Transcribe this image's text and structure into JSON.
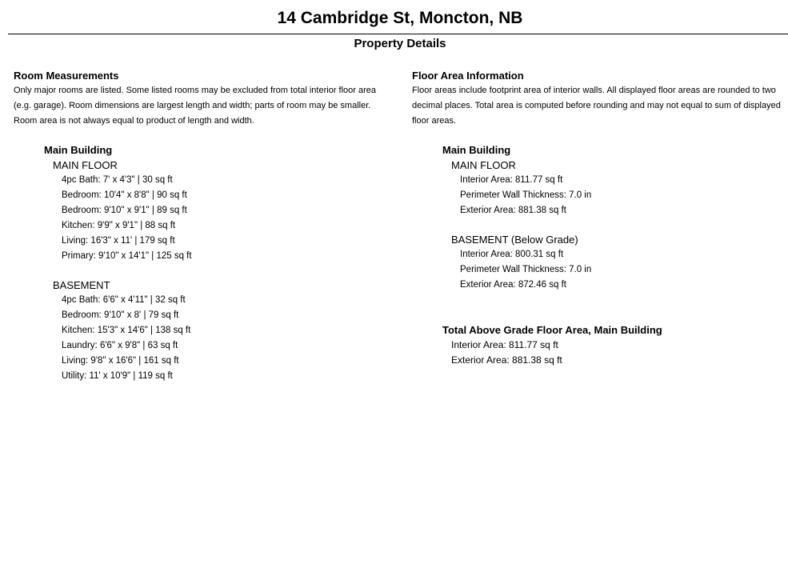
{
  "title": "14 Cambridge St, Moncton, NB",
  "subtitle": "Property Details",
  "room_measurements": {
    "heading": "Room Measurements",
    "description_lines": [
      "Only major rooms are listed. Some listed rooms may be excluded from total interior floor area",
      "(e.g. garage). Room dimensions are largest length and width; parts of room may be smaller.",
      "Room area is not always equal to product of length and width."
    ],
    "building": "Main Building",
    "floors": [
      {
        "name": "MAIN FLOOR",
        "rooms": [
          "4pc Bath: 7' x 4'3\" | 30 sq ft",
          "Bedroom: 10'4\" x 8'8\" | 90 sq ft",
          "Bedroom: 9'10\" x 9'1\" | 89 sq ft",
          "Kitchen: 9'9\" x 9'1\" | 88 sq ft",
          "Living: 16'3\" x 11' | 179 sq ft",
          "Primary: 9'10\" x 14'1\" | 125 sq ft"
        ]
      },
      {
        "name": "BASEMENT",
        "rooms": [
          "4pc Bath: 6'6\" x 4'11\" | 32 sq ft",
          "Bedroom: 9'10\" x 8' | 79 sq ft",
          "Kitchen: 15'3\" x 14'6\" | 138 sq ft",
          "Laundry: 6'6\" x 9'8\" | 63 sq ft",
          "Living: 9'8\" x 16'6\" | 161 sq ft",
          "Utility: 11' x 10'9\" | 119 sq ft"
        ]
      }
    ]
  },
  "floor_area": {
    "heading": "Floor Area Information",
    "description_lines": [
      "Floor areas include footprint area of interior walls. All displayed floor areas are rounded to two",
      "decimal places. Total area is computed before rounding and may not equal to sum of displayed",
      "floor areas."
    ],
    "building": "Main Building",
    "floors": [
      {
        "name": "MAIN FLOOR",
        "items": [
          "Interior Area: 811.77 sq ft",
          "Perimeter Wall Thickness: 7.0 in",
          "Exterior Area: 881.38 sq ft"
        ]
      },
      {
        "name": "BASEMENT (Below Grade)",
        "items": [
          "Interior Area: 800.31 sq ft",
          "Perimeter Wall Thickness: 7.0 in",
          "Exterior Area: 872.46 sq ft"
        ]
      }
    ],
    "total": {
      "heading": "Total Above Grade Floor Area, Main Building",
      "items": [
        "Interior Area: 811.77 sq ft",
        "Exterior Area: 881.38 sq ft"
      ]
    }
  }
}
